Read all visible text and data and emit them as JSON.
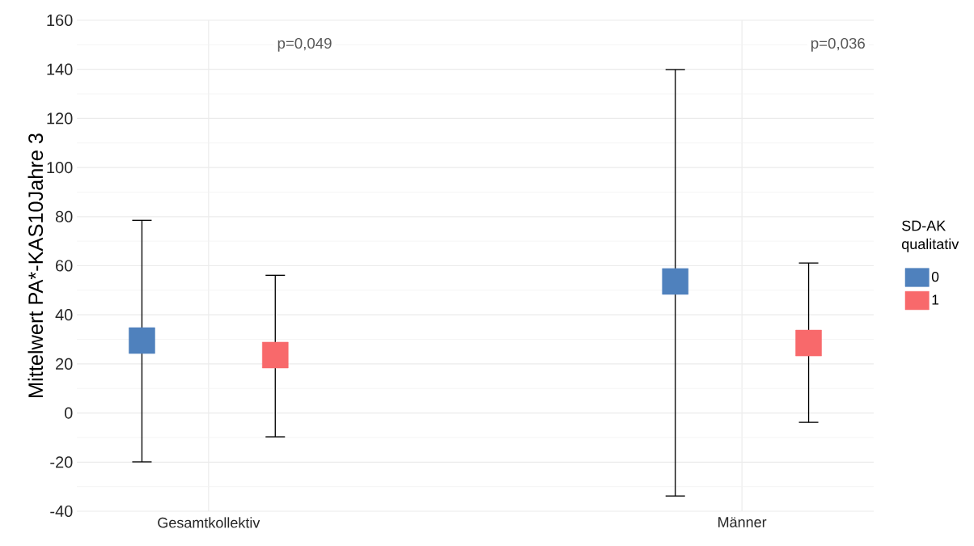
{
  "chart_data": {
    "type": "scatter",
    "ylabel": "Mittelwert PA*-KAS10Jahre 3",
    "legend_title": "SD-AK qualitativ",
    "categories": [
      "Gesamtkollektiv",
      "Männer"
    ],
    "series": [
      {
        "name": "0",
        "color": "#4f81bd",
        "values": [
          29.5,
          53.6
        ],
        "errors": [
          [
            -19.9,
            78.5
          ],
          [
            -33.8,
            139.9
          ]
        ]
      },
      {
        "name": "1",
        "color": "#f8696b",
        "values": [
          23.6,
          28.5
        ],
        "errors": [
          [
            -9.7,
            56.1
          ],
          [
            -3.8,
            61.1
          ]
        ]
      }
    ],
    "ylim": [
      -40,
      160
    ],
    "yticks": [
      -40,
      -20,
      0,
      20,
      40,
      60,
      80,
      100,
      120,
      140,
      160
    ],
    "annotations": [
      "p=0,049",
      "p=0,036"
    ],
    "grid": true,
    "legend": "right",
    "marker": "square"
  }
}
